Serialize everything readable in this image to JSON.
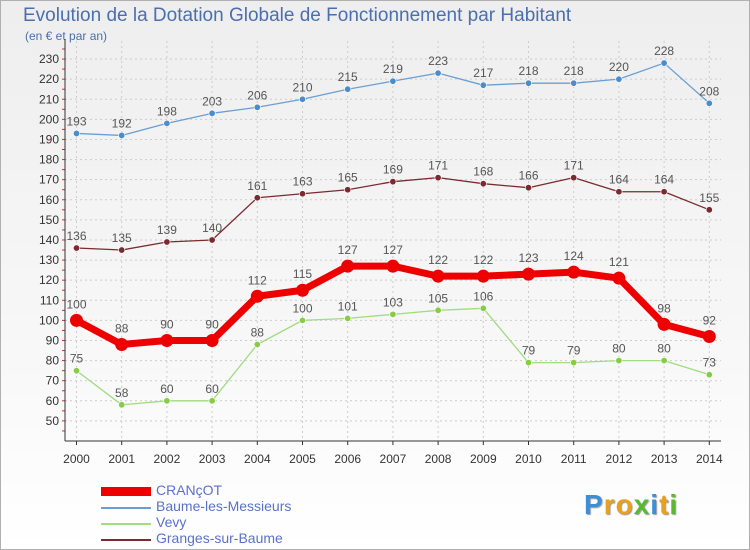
{
  "title": "Evolution de la Dotation Globale de Fonctionnement par Habitant",
  "subtitle": "(en € et par an)",
  "logo": {
    "text": "Proxiti",
    "letters": [
      {
        "ch": "P",
        "color": "#3b8fd8"
      },
      {
        "ch": "r",
        "color": "#e8a020"
      },
      {
        "ch": "o",
        "color": "#e8a020"
      },
      {
        "ch": "x",
        "color": "#5bb832"
      },
      {
        "ch": "i",
        "color": "#3b8fd8"
      },
      {
        "ch": "t",
        "color": "#e8a020"
      },
      {
        "ch": "i",
        "color": "#5bb832"
      }
    ]
  },
  "chart_data": {
    "type": "line",
    "title": "Evolution de la Dotation Globale de Fonctionnement par Habitant",
    "ylabel": "(en € et par an)",
    "xlabel": "",
    "ylim": [
      40,
      235
    ],
    "yticks": [
      50,
      60,
      70,
      80,
      90,
      100,
      110,
      120,
      130,
      140,
      150,
      160,
      170,
      180,
      190,
      200,
      210,
      220,
      230
    ],
    "x": [
      "2000",
      "2001",
      "2002",
      "2003",
      "2004",
      "2005",
      "2006",
      "2007",
      "2008",
      "2009",
      "2010",
      "2011",
      "2012",
      "2013",
      "2014"
    ],
    "grid": true,
    "legend_position": "bottom-left",
    "series": [
      {
        "name": "Baume-les-Messieurs",
        "color": "#6a9fd4",
        "marker": "#4a8ccc",
        "label_color": "#555555",
        "thick": false,
        "values": [
          193,
          192,
          198,
          203,
          206,
          210,
          215,
          219,
          223,
          217,
          218,
          218,
          220,
          228,
          208
        ]
      },
      {
        "name": "Granges-sur-Baume",
        "color": "#7a2a30",
        "marker": "#7a2a30",
        "label_color": "#555555",
        "thick": false,
        "values": [
          136,
          135,
          139,
          140,
          161,
          163,
          165,
          169,
          171,
          168,
          166,
          171,
          164,
          164,
          155
        ]
      },
      {
        "name": "Vevy",
        "color": "#a0dc80",
        "marker": "#86cc45",
        "label_color": "#555555",
        "thick": false,
        "values": [
          75,
          58,
          60,
          60,
          88,
          100,
          101,
          103,
          105,
          106,
          79,
          79,
          80,
          80,
          73
        ]
      },
      {
        "name": "CRANçOT",
        "color": "#ee0000",
        "marker": "#ee0000",
        "label_color": "#555555",
        "thick": true,
        "values": [
          100,
          88,
          90,
          90,
          112,
          115,
          127,
          127,
          122,
          122,
          123,
          124,
          121,
          98,
          92
        ]
      }
    ],
    "legend_order": [
      "CRANçOT",
      "Baume-les-Messieurs",
      "Vevy",
      "Granges-sur-Baume"
    ]
  }
}
